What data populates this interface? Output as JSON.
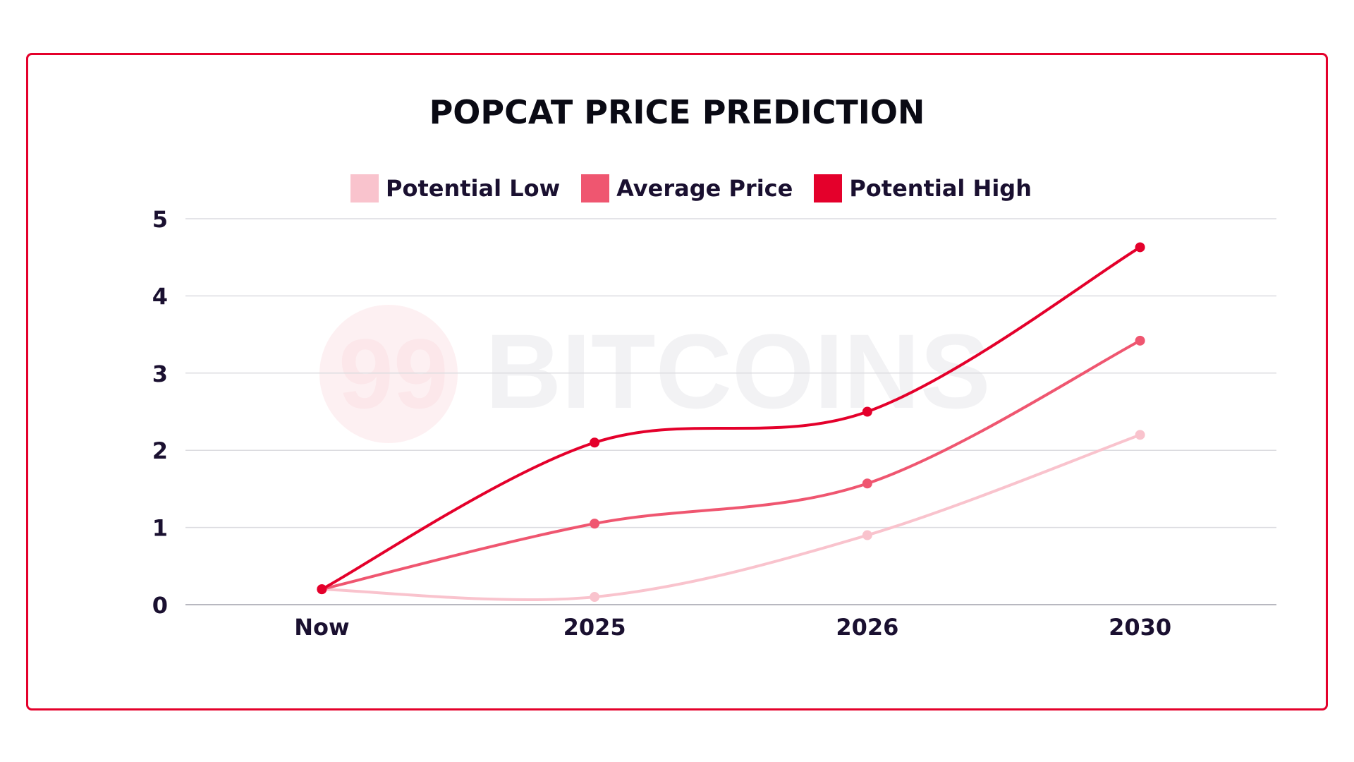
{
  "chart_data": {
    "type": "line",
    "title": "POPCAT PRICE PREDICTION",
    "categories": [
      "Now",
      "2025",
      "2026",
      "2030"
    ],
    "series": [
      {
        "name": "Potential Low",
        "color": "#f9c3cd",
        "values": [
          0.2,
          0.1,
          0.9,
          2.2
        ]
      },
      {
        "name": "Average Price",
        "color": "#ef5670",
        "values": [
          0.2,
          1.05,
          1.57,
          3.42
        ]
      },
      {
        "name": "Potential High",
        "color": "#e4002b",
        "values": [
          0.2,
          2.1,
          2.5,
          4.63
        ]
      }
    ],
    "yticks": [
      "0",
      "1",
      "2",
      "3",
      "4",
      "5"
    ],
    "ylim": [
      0,
      5
    ],
    "grid": true,
    "legend": "top",
    "xlabel": "",
    "ylabel": ""
  },
  "watermark": "99 BITCOINS"
}
